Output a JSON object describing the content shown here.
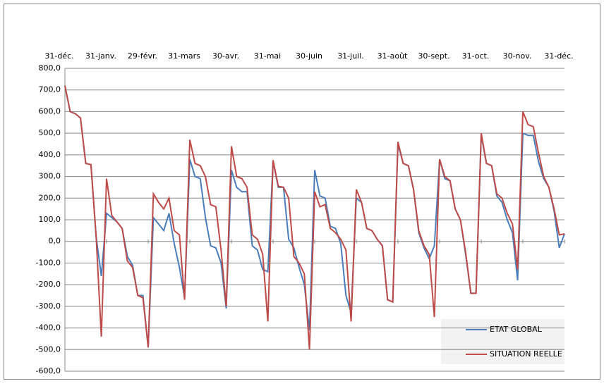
{
  "chart_data": {
    "type": "line",
    "categories": [
      "31-déc.",
      null,
      null,
      null,
      null,
      null,
      null,
      null,
      "31-janv.",
      null,
      null,
      null,
      null,
      null,
      null,
      null,
      "29-févr.",
      null,
      null,
      null,
      null,
      null,
      null,
      null,
      "31-mars",
      null,
      null,
      null,
      null,
      null,
      null,
      null,
      "30-avr.",
      null,
      null,
      null,
      null,
      null,
      null,
      null,
      "31-mai",
      null,
      null,
      null,
      null,
      null,
      null,
      null,
      "30-juin",
      null,
      null,
      null,
      null,
      null,
      null,
      null,
      "31-juil.",
      null,
      null,
      null,
      null,
      null,
      null,
      null,
      "31-août",
      null,
      null,
      null,
      null,
      null,
      null,
      null,
      "30-sept.",
      null,
      null,
      null,
      null,
      null,
      null,
      null,
      "31-oct.",
      null,
      null,
      null,
      null,
      null,
      null,
      null,
      "30-nov.",
      null,
      null,
      null,
      null,
      null,
      null,
      null,
      "31-déc."
    ],
    "series": [
      {
        "name": "ETAT GLOBAL",
        "color": "#4a7ebb",
        "values": [
          720,
          600,
          590,
          570,
          360,
          355,
          20,
          -160,
          130,
          110,
          90,
          60,
          -70,
          -110,
          -250,
          -250,
          -490,
          110,
          80,
          50,
          130,
          -10,
          -120,
          -260,
          380,
          300,
          290,
          110,
          -20,
          -30,
          -100,
          -310,
          330,
          250,
          230,
          230,
          -20,
          -40,
          -130,
          -140,
          370,
          250,
          250,
          10,
          -30,
          -120,
          -200,
          -410,
          330,
          210,
          200,
          70,
          60,
          -10,
          -250,
          -330,
          200,
          180,
          60,
          50,
          10,
          -20,
          -270,
          -280,
          450,
          360,
          350,
          240,
          40,
          -30,
          -80,
          -20,
          380,
          290,
          280,
          150,
          100,
          -60,
          -240,
          -240,
          490,
          360,
          350,
          210,
          180,
          100,
          40,
          -180,
          500,
          490,
          490,
          370,
          290,
          250,
          140,
          -30,
          35
        ]
      },
      {
        "name": "SITUATION REELLE",
        "color": "#be4b48",
        "values": [
          720,
          600,
          590,
          570,
          360,
          355,
          20,
          -440,
          290,
          120,
          90,
          60,
          -90,
          -120,
          -250,
          -260,
          -490,
          220,
          180,
          150,
          200,
          50,
          30,
          -270,
          470,
          360,
          350,
          300,
          170,
          160,
          -40,
          -300,
          440,
          300,
          290,
          250,
          30,
          10,
          -60,
          -370,
          375,
          255,
          250,
          200,
          -70,
          -100,
          -150,
          -500,
          230,
          160,
          170,
          60,
          40,
          10,
          -40,
          -370,
          240,
          180,
          60,
          50,
          10,
          -20,
          -270,
          -280,
          460,
          360,
          350,
          240,
          50,
          -20,
          -60,
          -350,
          380,
          300,
          280,
          150,
          100,
          -50,
          -240,
          -240,
          500,
          360,
          350,
          220,
          200,
          130,
          80,
          -130,
          600,
          540,
          530,
          410,
          300,
          250,
          150,
          30,
          35
        ]
      }
    ],
    "ylim": [
      -600,
      800
    ],
    "yticks": [
      {
        "value": -600,
        "label": "-600,0"
      },
      {
        "value": -500,
        "label": "-500,0"
      },
      {
        "value": -400,
        "label": "-400,0"
      },
      {
        "value": -300,
        "label": "-300,0"
      },
      {
        "value": -200,
        "label": "-200,0"
      },
      {
        "value": -100,
        "label": "-100,0"
      },
      {
        "value": 0,
        "label": "0,0"
      },
      {
        "value": 100,
        "label": "100,0"
      },
      {
        "value": 200,
        "label": "200,0"
      },
      {
        "value": 300,
        "label": "300,0"
      },
      {
        "value": 400,
        "label": "400,0"
      },
      {
        "value": 500,
        "label": "500,0"
      },
      {
        "value": 600,
        "label": "600,0"
      },
      {
        "value": 700,
        "label": "700,0"
      },
      {
        "value": 800,
        "label": "800,0"
      }
    ],
    "grid": true
  }
}
